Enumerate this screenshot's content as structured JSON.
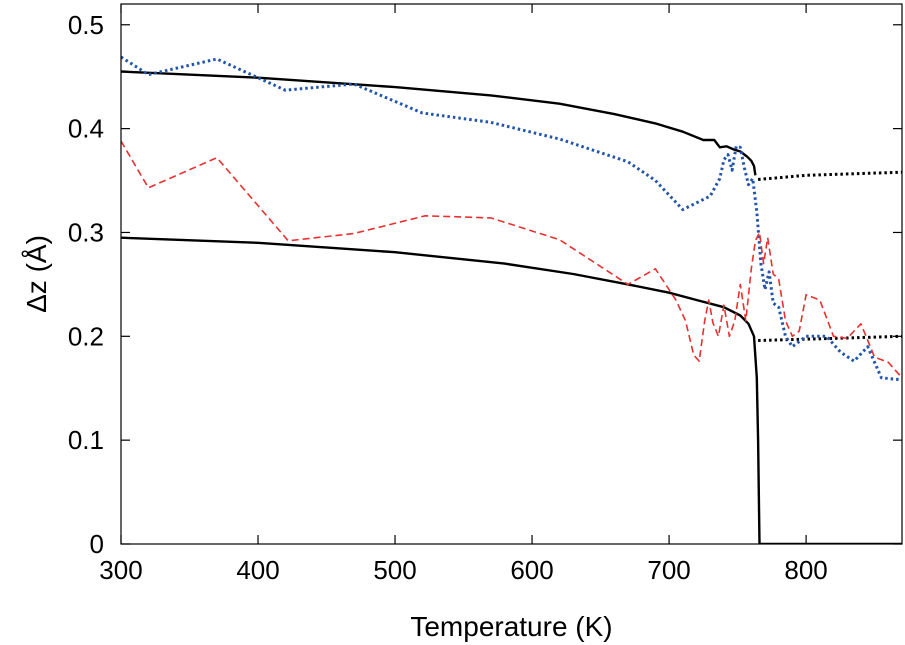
{
  "chart_data": {
    "type": "line",
    "xlabel": "Temperature (K)",
    "ylabel": "Δz (Å)",
    "xlim": [
      300,
      870
    ],
    "ylim": [
      0,
      0.52
    ],
    "x_ticks": [
      "300",
      "400",
      "500",
      "600",
      "700",
      "800"
    ],
    "y_ticks": [
      "0",
      "0.1",
      "0.2",
      "0.3",
      "0.4",
      "0.5"
    ],
    "grid": false,
    "legend": "none",
    "series": [
      {
        "color": "#000000",
        "style": "solid",
        "points": [
          [
            300,
            0.455
          ],
          [
            400,
            0.449
          ],
          [
            500,
            0.44
          ],
          [
            570,
            0.432
          ],
          [
            620,
            0.424
          ],
          [
            660,
            0.414
          ],
          [
            690,
            0.405
          ],
          [
            710,
            0.397
          ],
          [
            725,
            0.389
          ],
          [
            733,
            0.389
          ],
          [
            737,
            0.382
          ],
          [
            742,
            0.383
          ],
          [
            747,
            0.38
          ],
          [
            752,
            0.378
          ],
          [
            757,
            0.373
          ],
          [
            760,
            0.369
          ],
          [
            762,
            0.364
          ],
          [
            763,
            0.355
          ]
        ]
      },
      {
        "color": "#000000",
        "style": "solid",
        "points": [
          [
            300,
            0.295
          ],
          [
            400,
            0.29
          ],
          [
            500,
            0.281
          ],
          [
            580,
            0.27
          ],
          [
            630,
            0.26
          ],
          [
            670,
            0.25
          ],
          [
            700,
            0.242
          ],
          [
            720,
            0.235
          ],
          [
            740,
            0.228
          ],
          [
            752,
            0.22
          ],
          [
            758,
            0.212
          ],
          [
            762,
            0.2
          ],
          [
            764,
            0.16
          ],
          [
            765,
            0.1
          ],
          [
            766,
            0.0
          ],
          [
            870,
            0.0
          ]
        ]
      },
      {
        "color": "#000000",
        "style": "dotted",
        "points": [
          [
            765,
            0.351
          ],
          [
            800,
            0.355
          ],
          [
            870,
            0.358
          ]
        ]
      },
      {
        "color": "#000000",
        "style": "dotted",
        "points": [
          [
            765,
            0.196
          ],
          [
            820,
            0.198
          ],
          [
            870,
            0.2
          ]
        ]
      },
      {
        "color": "#2255aa",
        "style": "dotted",
        "points": [
          [
            300,
            0.469
          ],
          [
            320,
            0.452
          ],
          [
            370,
            0.467
          ],
          [
            420,
            0.437
          ],
          [
            470,
            0.443
          ],
          [
            520,
            0.415
          ],
          [
            570,
            0.406
          ],
          [
            620,
            0.39
          ],
          [
            670,
            0.368
          ],
          [
            690,
            0.35
          ],
          [
            710,
            0.322
          ],
          [
            730,
            0.335
          ],
          [
            737,
            0.352
          ],
          [
            740,
            0.37
          ],
          [
            743,
            0.375
          ],
          [
            746,
            0.36
          ],
          [
            749,
            0.383
          ],
          [
            752,
            0.382
          ],
          [
            755,
            0.362
          ],
          [
            758,
            0.346
          ],
          [
            761,
            0.352
          ],
          [
            764,
            0.32
          ],
          [
            767,
            0.27
          ],
          [
            770,
            0.245
          ],
          [
            773,
            0.262
          ],
          [
            776,
            0.232
          ],
          [
            780,
            0.228
          ],
          [
            785,
            0.2
          ],
          [
            790,
            0.19
          ],
          [
            800,
            0.2
          ],
          [
            815,
            0.2
          ],
          [
            825,
            0.185
          ],
          [
            835,
            0.176
          ],
          [
            845,
            0.19
          ],
          [
            855,
            0.16
          ],
          [
            870,
            0.158
          ]
        ]
      },
      {
        "color": "#e83030",
        "style": "dashed",
        "points": [
          [
            300,
            0.388
          ],
          [
            320,
            0.343
          ],
          [
            370,
            0.372
          ],
          [
            422,
            0.292
          ],
          [
            470,
            0.299
          ],
          [
            522,
            0.316
          ],
          [
            570,
            0.314
          ],
          [
            620,
            0.293
          ],
          [
            670,
            0.25
          ],
          [
            690,
            0.265
          ],
          [
            705,
            0.235
          ],
          [
            712,
            0.215
          ],
          [
            718,
            0.182
          ],
          [
            722,
            0.176
          ],
          [
            726,
            0.215
          ],
          [
            729,
            0.235
          ],
          [
            732,
            0.213
          ],
          [
            736,
            0.2
          ],
          [
            740,
            0.23
          ],
          [
            744,
            0.2
          ],
          [
            748,
            0.215
          ],
          [
            752,
            0.25
          ],
          [
            756,
            0.215
          ],
          [
            760,
            0.265
          ],
          [
            763,
            0.292
          ],
          [
            766,
            0.3
          ],
          [
            769,
            0.27
          ],
          [
            772,
            0.295
          ],
          [
            776,
            0.26
          ],
          [
            780,
            0.255
          ],
          [
            785,
            0.215
          ],
          [
            790,
            0.2
          ],
          [
            795,
            0.205
          ],
          [
            800,
            0.24
          ],
          [
            810,
            0.235
          ],
          [
            820,
            0.2
          ],
          [
            830,
            0.198
          ],
          [
            840,
            0.212
          ],
          [
            850,
            0.18
          ],
          [
            860,
            0.175
          ],
          [
            870,
            0.16
          ]
        ]
      }
    ]
  }
}
